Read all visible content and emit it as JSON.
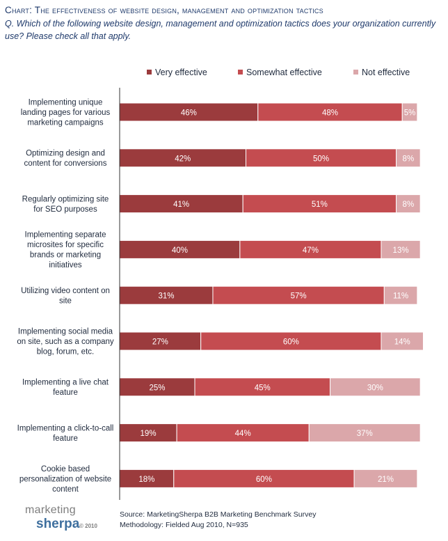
{
  "title": "Chart: The effectiveness of website design, management and optimization tactics",
  "question": "Q. Which of the following website design, management and optimization tactics does your organization currently use? Please check all that apply.",
  "colors": {
    "very": "#9b3b3d",
    "somewhat": "#c44c50",
    "not": "#dba7aa",
    "axis": "#333333",
    "label_text": "#1f2a3d"
  },
  "chart_data": {
    "type": "bar",
    "orientation": "horizontal",
    "stacked": true,
    "legend_position": "top",
    "categories": [
      [
        "Implementing unique",
        "landing pages for various",
        "marketing campaigns"
      ],
      [
        "Optimizing design and",
        "content for conversions"
      ],
      [
        "Regularly optimizing site",
        "for SEO purposes"
      ],
      [
        "Implementing separate",
        "microsites for specific",
        "brands or marketing",
        "initiatives"
      ],
      [
        "Utilizing video content on",
        "site"
      ],
      [
        "Implementing social media",
        "on site, such as a company",
        "blog, forum, etc."
      ],
      [
        "Implementing a live chat",
        "feature"
      ],
      [
        "Implementing a click-to-call",
        "feature"
      ],
      [
        "Cookie based",
        "personalization of website",
        "content"
      ]
    ],
    "series": [
      {
        "name": "Very effective",
        "values": [
          46,
          42,
          41,
          40,
          31,
          27,
          25,
          19,
          18
        ]
      },
      {
        "name": "Somewhat effective",
        "values": [
          48,
          50,
          51,
          47,
          57,
          60,
          45,
          44,
          60
        ]
      },
      {
        "name": "Not effective",
        "values": [
          5,
          8,
          8,
          13,
          11,
          14,
          30,
          37,
          21
        ]
      }
    ],
    "value_suffix": "%"
  },
  "footer": {
    "source": "Source: MarketingSherpa B2B Marketing Benchmark Survey",
    "methodology": "Methodology: Fielded Aug 2010, N=935"
  },
  "logo": {
    "line1": "marketing",
    "line2": "sherpa",
    "year": "© 2010"
  }
}
